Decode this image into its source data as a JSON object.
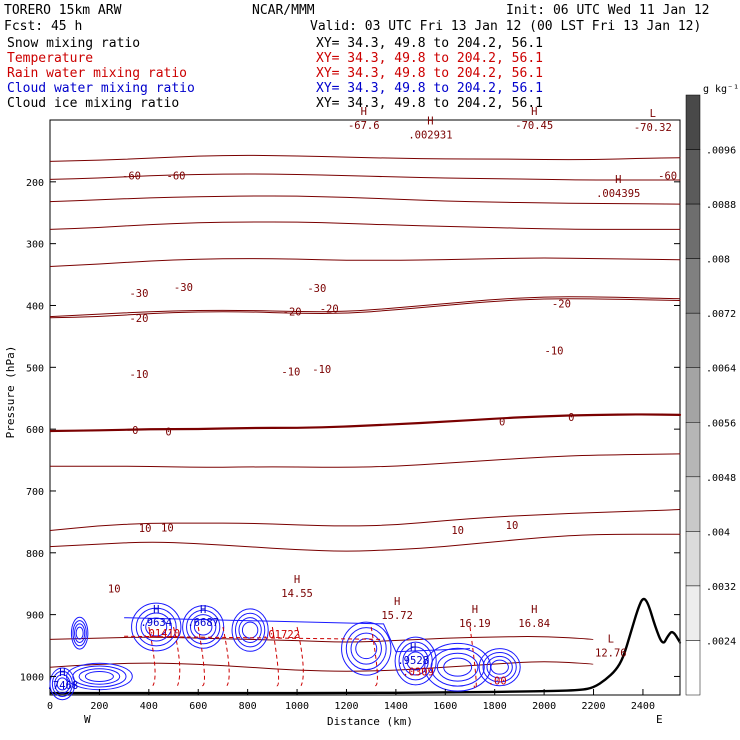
{
  "header": {
    "model": "TORERO  15km ARW",
    "center": "NCAR/MMM",
    "init": "Init: 06 UTC Wed 11 Jan 12",
    "fcst": "Fcst:   45 h",
    "valid": "Valid: 03 UTC Fri 13 Jan 12 (00 LST Fri 13 Jan 12)"
  },
  "fields": [
    {
      "name": "Snow mixing ratio",
      "xy": "",
      "color": "#000000"
    },
    {
      "name": "Temperature",
      "xy": "XY=  34.3, 49.8 to 204.2, 56.1",
      "color": "#cc0000"
    },
    {
      "name": "Rain water mixing ratio",
      "xy": "XY=  34.3, 49.8 to 204.2, 56.1",
      "color": "#cc0000"
    },
    {
      "name": "Cloud water mixing ratio",
      "xy": "XY=  34.3, 49.8 to 204.2, 56.1",
      "color": "#0000cc"
    },
    {
      "name": "Cloud ice mixing ratio",
      "xy": "XY=  34.3, 49.8 to 204.2, 56.1",
      "color": "#000000"
    }
  ],
  "snow_xy": "XY=  34.3, 49.8 to 204.2, 56.1",
  "direction": {
    "west": "W",
    "east": "E"
  },
  "colorbar": {
    "unit": "g kg⁻¹",
    "labels": [
      ".0024",
      ".0032",
      ".004",
      ".0048",
      ".0056",
      ".0064",
      ".0072",
      ".008",
      ".0088",
      ".0096"
    ]
  },
  "chart_data": {
    "type": "cross-section",
    "xlabel": "Distance (km)",
    "ylabel": "Pressure (hPa)",
    "xlim": [
      0,
      2550
    ],
    "ylim": [
      1030,
      100
    ],
    "x_ticks": [
      0,
      200,
      400,
      600,
      800,
      1000,
      1200,
      1400,
      1600,
      1800,
      2000,
      2200,
      2400
    ],
    "y_ticks": [
      200,
      300,
      400,
      500,
      600,
      700,
      800,
      900,
      1000
    ],
    "temperature_contours": [
      {
        "level": -60,
        "points": [
          [
            0,
            167
          ],
          [
            200,
            165
          ],
          [
            400,
            162
          ],
          [
            600,
            158
          ],
          [
            800,
            157
          ],
          [
            1000,
            158
          ],
          [
            1200,
            160
          ],
          [
            1400,
            162
          ],
          [
            1600,
            163
          ],
          [
            1800,
            163
          ],
          [
            2000,
            164
          ],
          [
            2200,
            164
          ],
          [
            2400,
            162
          ],
          [
            2550,
            161
          ]
        ]
      },
      {
        "level": -50,
        "points": [
          [
            0,
            196
          ],
          [
            200,
            194
          ],
          [
            400,
            190
          ],
          [
            600,
            188
          ],
          [
            800,
            187
          ],
          [
            1000,
            188
          ],
          [
            1200,
            190
          ],
          [
            1400,
            192
          ],
          [
            1600,
            194
          ],
          [
            1800,
            195
          ],
          [
            2000,
            196
          ],
          [
            2200,
            197
          ],
          [
            2550,
            197
          ]
        ]
      },
      {
        "level": -40,
        "points": [
          [
            0,
            232
          ],
          [
            200,
            229
          ],
          [
            400,
            226
          ],
          [
            600,
            224
          ],
          [
            800,
            223
          ],
          [
            1000,
            223
          ],
          [
            1200,
            225
          ],
          [
            1400,
            228
          ],
          [
            1600,
            231
          ],
          [
            1800,
            233
          ],
          [
            2000,
            234
          ],
          [
            2200,
            235
          ],
          [
            2550,
            236
          ]
        ]
      },
      {
        "level": -30,
        "points": [
          [
            0,
            277
          ],
          [
            200,
            274
          ],
          [
            400,
            269
          ],
          [
            600,
            266
          ],
          [
            800,
            265
          ],
          [
            1000,
            265
          ],
          [
            1200,
            267
          ],
          [
            1400,
            270
          ],
          [
            1600,
            272
          ],
          [
            1800,
            274
          ],
          [
            2000,
            276
          ],
          [
            2200,
            277
          ],
          [
            2550,
            277
          ]
        ]
      },
      {
        "level": -20,
        "points": [
          [
            0,
            337
          ],
          [
            200,
            333
          ],
          [
            400,
            328
          ],
          [
            600,
            325
          ],
          [
            800,
            324
          ],
          [
            1000,
            325
          ],
          [
            1200,
            327
          ],
          [
            1400,
            327
          ],
          [
            1600,
            326
          ],
          [
            1800,
            324
          ],
          [
            2000,
            323
          ],
          [
            2200,
            324
          ],
          [
            2550,
            326
          ]
        ]
      },
      {
        "level": -10,
        "points": [
          [
            0,
            418
          ],
          [
            200,
            414
          ],
          [
            400,
            410
          ],
          [
            600,
            408
          ],
          [
            800,
            408
          ],
          [
            1000,
            410
          ],
          [
            1200,
            410
          ],
          [
            1400,
            404
          ],
          [
            1600,
            397
          ],
          [
            1800,
            390
          ],
          [
            2000,
            386
          ],
          [
            2200,
            386
          ],
          [
            2550,
            389
          ]
        ]
      },
      {
        "level": -10,
        "points": [
          [
            0,
            420
          ],
          [
            200,
            418
          ],
          [
            400,
            413
          ],
          [
            600,
            410
          ],
          [
            800,
            410
          ],
          [
            1000,
            413
          ],
          [
            1200,
            413
          ],
          [
            1400,
            407
          ],
          [
            1600,
            400
          ],
          [
            1800,
            393
          ],
          [
            2000,
            389
          ],
          [
            2200,
            389
          ],
          [
            2550,
            392
          ]
        ]
      },
      {
        "level": 0,
        "points": [
          [
            0,
            603
          ],
          [
            200,
            602
          ],
          [
            400,
            600
          ],
          [
            600,
            600
          ],
          [
            800,
            598
          ],
          [
            1000,
            598
          ],
          [
            1200,
            596
          ],
          [
            1400,
            592
          ],
          [
            1600,
            588
          ],
          [
            1800,
            583
          ],
          [
            2000,
            579
          ],
          [
            2200,
            577
          ],
          [
            2400,
            576
          ],
          [
            2550,
            577
          ]
        ]
      },
      {
        "level": 10,
        "points": [
          [
            0,
            660
          ],
          [
            200,
            660
          ],
          [
            400,
            660
          ],
          [
            600,
            662
          ],
          [
            800,
            661
          ],
          [
            1000,
            661
          ],
          [
            1200,
            662
          ],
          [
            1400,
            660
          ],
          [
            1600,
            655
          ],
          [
            1800,
            650
          ],
          [
            2000,
            645
          ],
          [
            2200,
            642
          ],
          [
            2550,
            640
          ]
        ]
      },
      {
        "level": 10,
        "points": [
          [
            0,
            764
          ],
          [
            200,
            756
          ],
          [
            400,
            752
          ],
          [
            600,
            752
          ],
          [
            800,
            752
          ],
          [
            1000,
            755
          ],
          [
            1200,
            757
          ],
          [
            1400,
            755
          ],
          [
            1600,
            748
          ],
          [
            1800,
            742
          ],
          [
            2000,
            738
          ],
          [
            2200,
            735
          ],
          [
            2550,
            730
          ]
        ]
      },
      {
        "level": 10,
        "points": [
          [
            0,
            790
          ],
          [
            200,
            786
          ],
          [
            400,
            782
          ],
          [
            600,
            785
          ],
          [
            800,
            790
          ],
          [
            1000,
            795
          ],
          [
            1200,
            798
          ],
          [
            1400,
            795
          ],
          [
            1600,
            790
          ],
          [
            1800,
            782
          ],
          [
            2000,
            775
          ],
          [
            2200,
            770
          ],
          [
            2550,
            770
          ]
        ]
      },
      {
        "level": 20,
        "points": [
          [
            0,
            940
          ],
          [
            200,
            938
          ],
          [
            400,
            936
          ],
          [
            600,
            938
          ],
          [
            800,
            940
          ],
          [
            1000,
            942
          ],
          [
            1200,
            945
          ],
          [
            1400,
            942
          ],
          [
            1600,
            938
          ],
          [
            1800,
            936
          ],
          [
            2000,
            935
          ],
          [
            2200,
            940
          ]
        ]
      },
      {
        "level": 20,
        "points": [
          [
            0,
            985
          ],
          [
            200,
            980
          ],
          [
            400,
            978
          ],
          [
            600,
            980
          ],
          [
            800,
            985
          ],
          [
            1000,
            990
          ],
          [
            1200,
            992
          ],
          [
            1400,
            990
          ],
          [
            1600,
            985
          ],
          [
            1800,
            980
          ],
          [
            2000,
            975
          ],
          [
            2200,
            980
          ]
        ]
      }
    ],
    "contour_labels": [
      {
        "text": "-60",
        "x": 330,
        "y": 190
      },
      {
        "text": "-60",
        "x": 510,
        "y": 190
      },
      {
        "text": "-60",
        "x": 2500,
        "y": 190
      },
      {
        "text": "-30",
        "x": 360,
        "y": 380
      },
      {
        "text": "-30",
        "x": 1080,
        "y": 372
      },
      {
        "text": "-30",
        "x": 540,
        "y": 370
      },
      {
        "text": "-20",
        "x": 360,
        "y": 420
      },
      {
        "text": "-20",
        "x": 980,
        "y": 410
      },
      {
        "text": "-20",
        "x": 1130,
        "y": 405
      },
      {
        "text": "-20",
        "x": 2070,
        "y": 397
      },
      {
        "text": "-10",
        "x": 360,
        "y": 511
      },
      {
        "text": "-10",
        "x": 975,
        "y": 507
      },
      {
        "text": "-10",
        "x": 1100,
        "y": 503
      },
      {
        "text": "-10",
        "x": 2040,
        "y": 473
      },
      {
        "text": "0",
        "x": 345,
        "y": 601
      },
      {
        "text": "0",
        "x": 480,
        "y": 604
      },
      {
        "text": "0",
        "x": 1830,
        "y": 588
      },
      {
        "text": "0",
        "x": 2110,
        "y": 580
      },
      {
        "text": "10",
        "x": 385,
        "y": 760
      },
      {
        "text": "10",
        "x": 475,
        "y": 759
      },
      {
        "text": "10",
        "x": 1650,
        "y": 763
      },
      {
        "text": "10",
        "x": 1870,
        "y": 755
      },
      {
        "text": "10",
        "x": 260,
        "y": 858
      }
    ],
    "extrema": [
      {
        "type": "H",
        "value": "14.55",
        "x": 1000,
        "y": 862
      },
      {
        "type": "H",
        "value": "15.72",
        "x": 1405,
        "y": 897
      },
      {
        "type": "H",
        "value": "16.19",
        "x": 1720,
        "y": 910
      },
      {
        "type": "H",
        "value": "16.84",
        "x": 1960,
        "y": 910
      },
      {
        "type": "L",
        "value": "12.76",
        "x": 2270,
        "y": 958
      },
      {
        "type": "H",
        "value": ".002931",
        "x": 1540,
        "y": 120
      },
      {
        "type": "H",
        "value": ".004395",
        "x": 2300,
        "y": 215
      },
      {
        "type": "L",
        "value": "-70.32",
        "x": 2440,
        "y": 108
      },
      {
        "type": "H",
        "value": "-67.6",
        "x": 1270,
        "y": 105
      },
      {
        "type": "H",
        "value": "-70.45",
        "x": 1960,
        "y": 105
      }
    ],
    "cloud_ice_max": [
      {
        "value": ".9634",
        "x": 430,
        "y": 910
      },
      {
        "value": ".6687",
        "x": 620,
        "y": 910
      },
      {
        "value": ".7468",
        "x": 50,
        "y": 1012
      },
      {
        "value": ".9528",
        "x": 1470,
        "y": 972
      }
    ],
    "rain_max": [
      {
        "value": ".01410",
        "x": 450,
        "y": 928
      },
      {
        "value": ".01722",
        "x": 935,
        "y": 930
      },
      {
        "value": ".0309",
        "x": 1490,
        "y": 990
      },
      {
        "value": ".00",
        "x": 1810,
        "y": 1005
      }
    ],
    "terrain": [
      [
        0,
        1027
      ],
      [
        400,
        1027
      ],
      [
        800,
        1027
      ],
      [
        1200,
        1027
      ],
      [
        1600,
        1026
      ],
      [
        2000,
        1024
      ],
      [
        2150,
        1022
      ],
      [
        2200,
        1018
      ],
      [
        2250,
        1005
      ],
      [
        2290,
        990
      ],
      [
        2320,
        970
      ],
      [
        2350,
        930
      ],
      [
        2380,
        890
      ],
      [
        2400,
        872
      ],
      [
        2420,
        880
      ],
      [
        2450,
        920
      ],
      [
        2480,
        950
      ],
      [
        2500,
        935
      ],
      [
        2520,
        925
      ],
      [
        2550,
        945
      ]
    ]
  }
}
